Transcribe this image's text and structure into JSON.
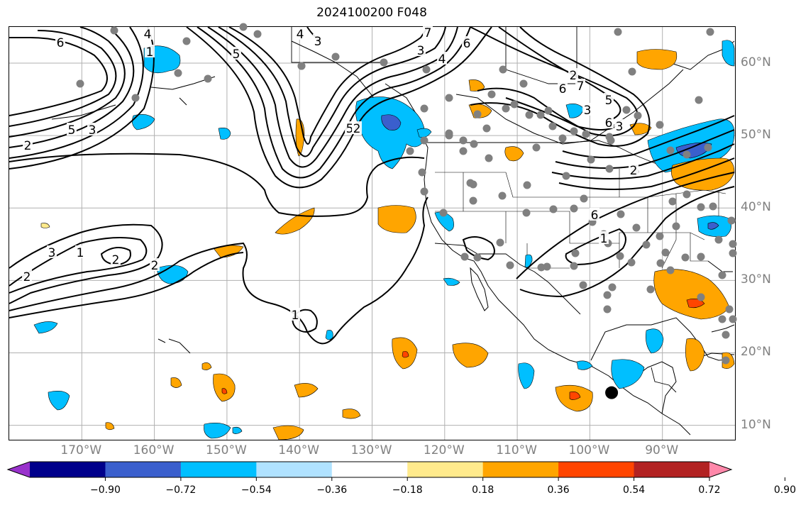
{
  "title": "2024100200 F048",
  "map": {
    "projection": "plate-carree",
    "lon_range": [
      -180,
      -80
    ],
    "lat_range": [
      8,
      65
    ],
    "grid": true,
    "lon_labels": [
      "170°W",
      "160°W",
      "150°W",
      "140°W",
      "130°W",
      "120°W",
      "110°W",
      "100°W",
      "90°W"
    ],
    "lat_labels": [
      "60°N",
      "50°N",
      "40°N",
      "30°N",
      "20°N",
      "10°N"
    ],
    "contour_labels": [
      "6",
      "4",
      "5",
      "3",
      "2",
      "1",
      "4",
      "3",
      "5",
      "7",
      "6",
      "4",
      "2",
      "7",
      "6",
      "5",
      "3",
      "6",
      "5",
      "3",
      "2",
      "6",
      "1",
      "2",
      "3",
      "1",
      "2",
      "1",
      "2",
      "3",
      "2"
    ],
    "marker": {
      "lon": -97,
      "lat": 14.5,
      "description": "black dot"
    },
    "station_color": "#808080"
  },
  "colorbar": {
    "ticks": [
      "−0.90",
      "−0.72",
      "−0.54",
      "−0.36",
      "−0.18",
      "0.18",
      "0.36",
      "0.54",
      "0.72",
      "0.90"
    ],
    "colors": [
      "#9932cc",
      "#00008b",
      "#3a5fcd",
      "#00bfff",
      "#b0e2ff",
      "#ffffff",
      "#ffea8c",
      "#ffa500",
      "#ff4500",
      "#b22222",
      "#ff88aa"
    ],
    "extend": "both"
  }
}
